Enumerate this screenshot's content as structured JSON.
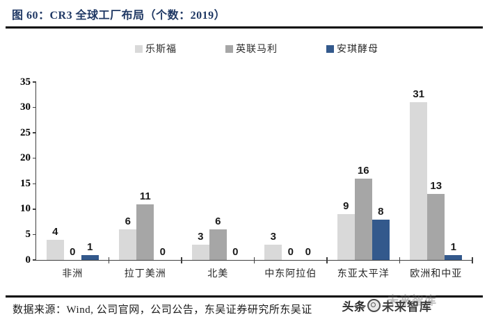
{
  "figure": {
    "title": "图 60：CR3 全球工厂布局（个数：2019）"
  },
  "chart_data": {
    "type": "bar",
    "title": "CR3 全球工厂布局（个数：2019）",
    "categories": [
      "非洲",
      "拉丁美洲",
      "北美",
      "中东阿拉伯",
      "东亚太平洋",
      "欧洲和中亚"
    ],
    "series": [
      {
        "name": "乐斯福",
        "color": "#D9D9D9",
        "values": [
          4,
          6,
          3,
          3,
          9,
          31
        ]
      },
      {
        "name": "英联马利",
        "color": "#A6A6A6",
        "values": [
          0,
          11,
          6,
          0,
          16,
          13
        ]
      },
      {
        "name": "安琪酵母",
        "color": "#33598C",
        "values": [
          1,
          0,
          0,
          0,
          8,
          1
        ]
      }
    ],
    "ylim": [
      0,
      35
    ],
    "yticks": [
      0,
      5,
      10,
      15,
      20,
      25,
      30,
      35
    ],
    "grid": false,
    "legend_position": "top-center",
    "data_labels": true
  },
  "footer": {
    "source": "数据来源：Wind, 公司官网，公司公告，东吴证券研究所东吴证",
    "watermark_prefix": "头条",
    "watermark_suffix": "未来智库"
  },
  "colors": {
    "title": "#1F3864",
    "axis": "#3F3F3F",
    "rule": "#000000",
    "series_lesaffre": "#D9D9D9",
    "series_abmauri": "#A6A6A6",
    "series_angel": "#33598C"
  }
}
